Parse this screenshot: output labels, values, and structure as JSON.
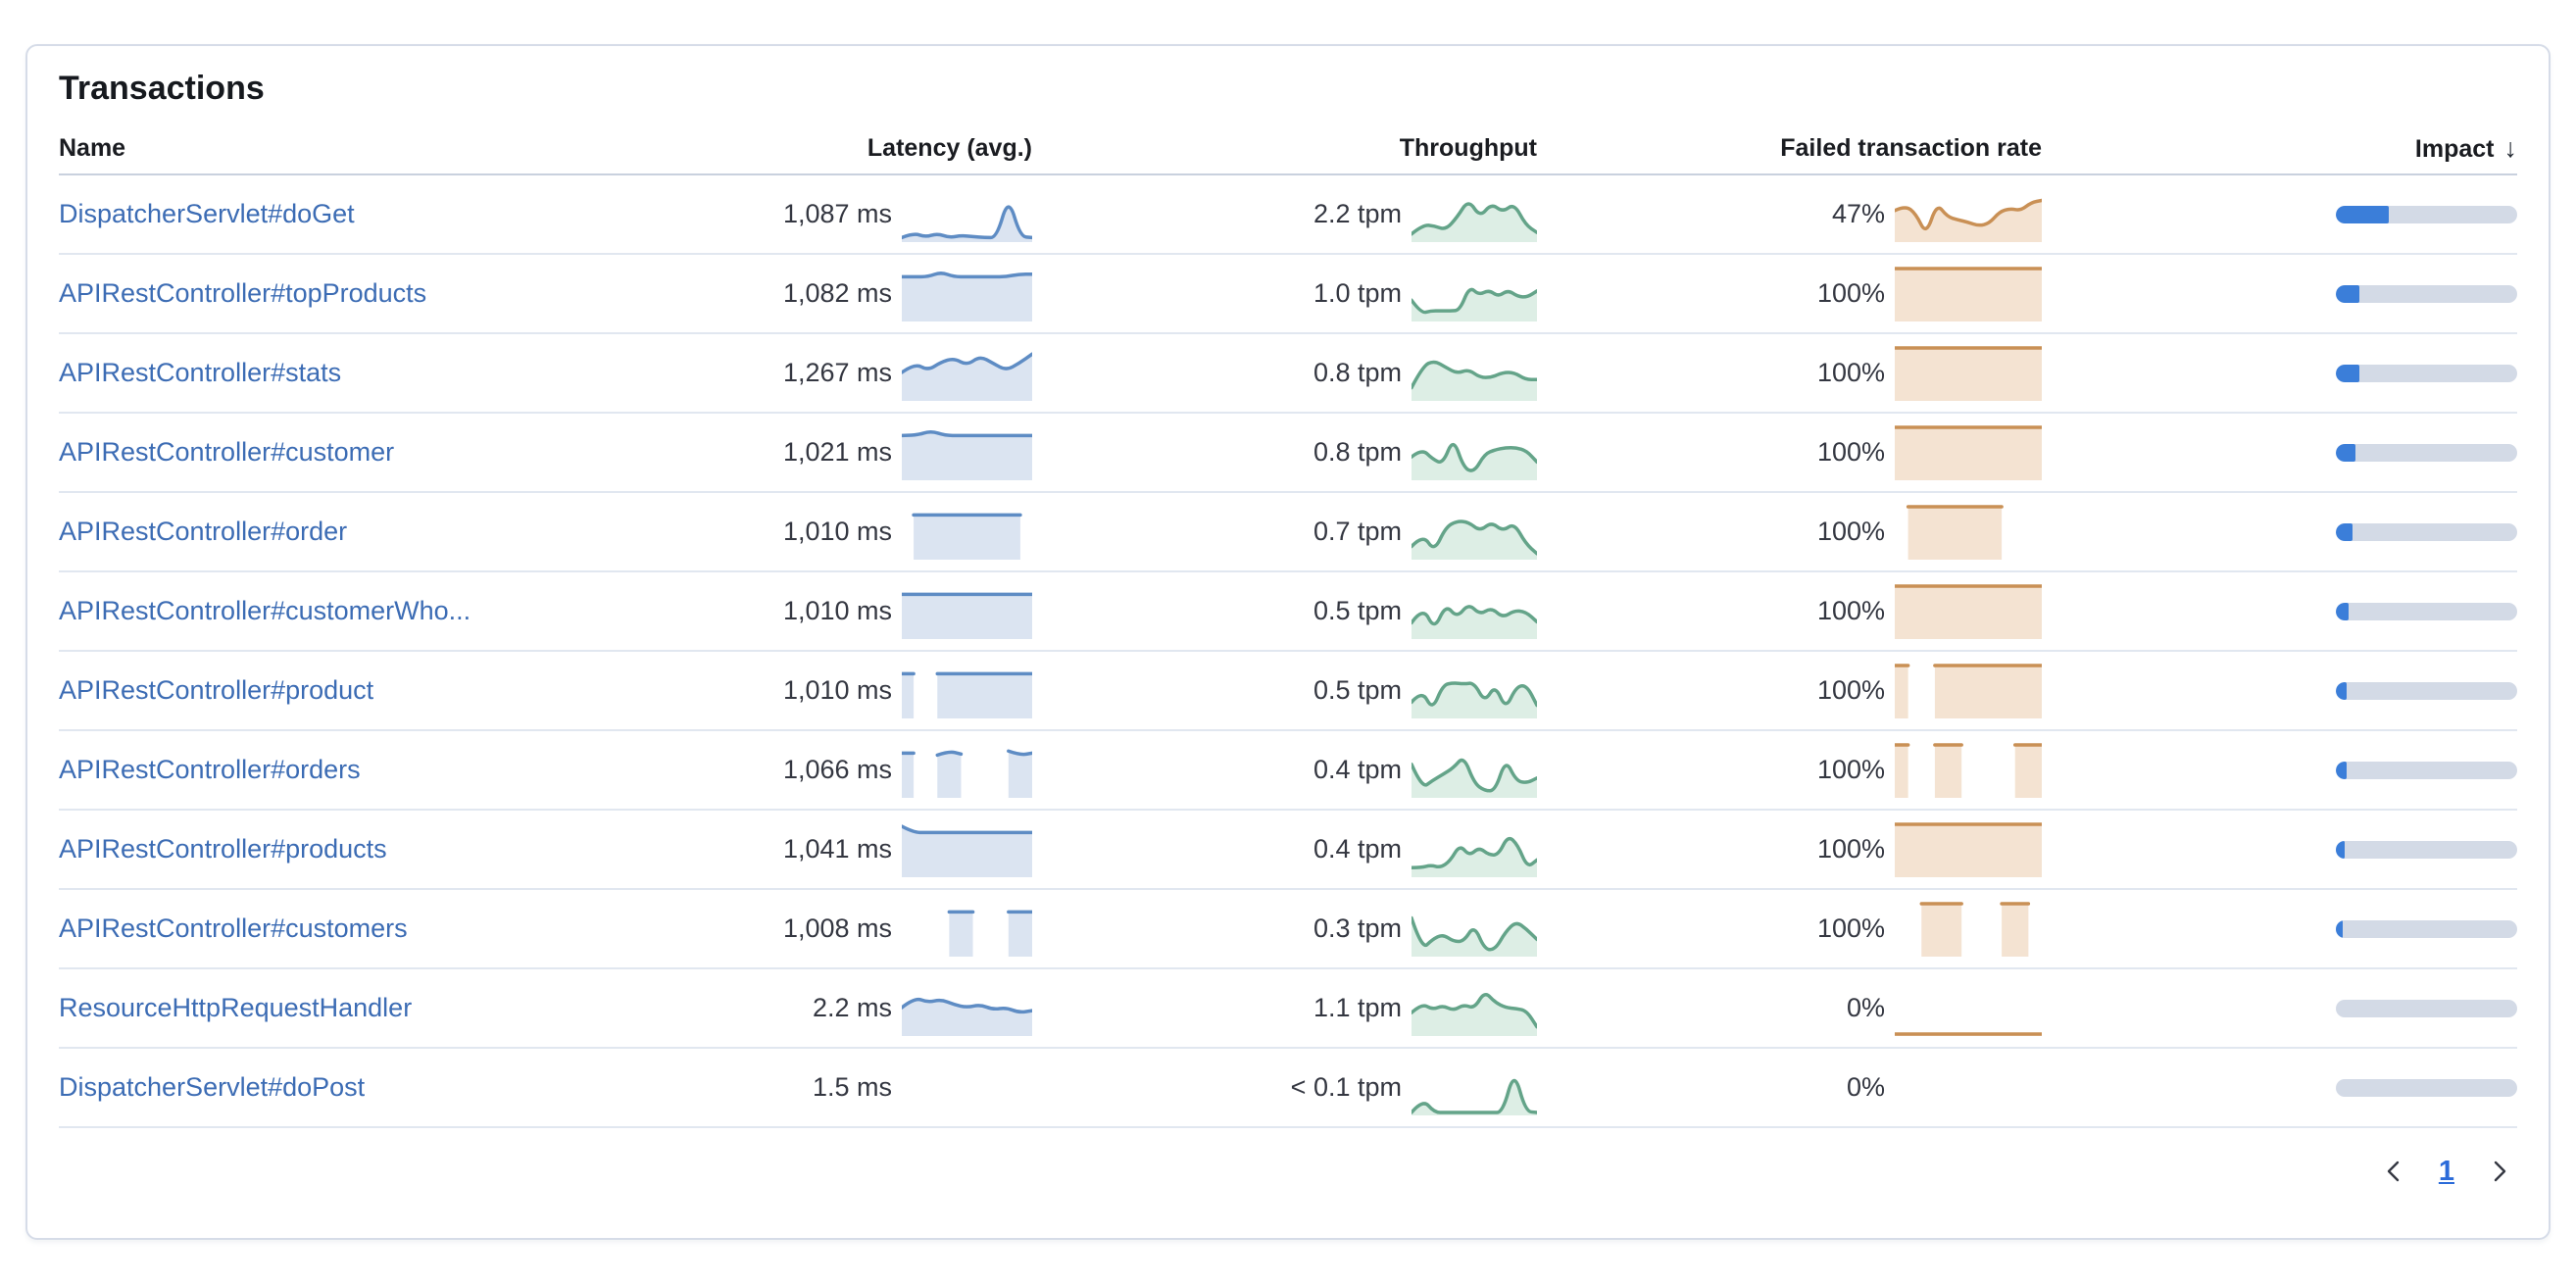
{
  "card": {
    "title": "Transactions"
  },
  "table": {
    "columns": {
      "name": "Name",
      "latency": "Latency (avg.)",
      "throughput": "Throughput",
      "failed_rate": "Failed transaction rate",
      "impact": "Impact"
    },
    "sort": {
      "column": "impact",
      "direction": "desc",
      "glyph": "↓"
    },
    "rows": [
      {
        "name": "DispatcherServlet#doGet",
        "latency": "1,087 ms",
        "throughput": "2.2 tpm",
        "failed_rate": "47%",
        "impact_pct": 29,
        "latency_spark": [
          5,
          14,
          6,
          13,
          5,
          9,
          7,
          5,
          5,
          85,
          7,
          5
        ],
        "throughput_spark": [
          12,
          30,
          28,
          20,
          45,
          80,
          45,
          72,
          55,
          72,
          30,
          15
        ],
        "failed_spark": [
          58,
          68,
          52,
          10,
          72,
          46,
          40,
          35,
          28,
          33,
          56,
          62,
          58,
          74,
          78
        ]
      },
      {
        "name": "APIRestController#topProducts",
        "latency": "1,082 ms",
        "throughput": "1.0 tpm",
        "failed_rate": "100%",
        "impact_pct": 13,
        "latency_spark": [
          84,
          84,
          84,
          93,
          84,
          84,
          84,
          84,
          84,
          89,
          89
        ],
        "throughput_spark": [
          38,
          12,
          17,
          17,
          17,
          18,
          65,
          48,
          58,
          45,
          58,
          45,
          44,
          56
        ],
        "failed_spark": [
          100,
          100,
          100,
          100,
          100,
          100,
          100,
          100,
          100,
          100
        ]
      },
      {
        "name": "APIRestController#stats",
        "latency": "1,267 ms",
        "throughput": "0.8 tpm",
        "failed_rate": "100%",
        "impact_pct": 13,
        "latency_spark": [
          52,
          70,
          56,
          72,
          80,
          66,
          84,
          70,
          56,
          70,
          88
        ],
        "throughput_spark": [
          22,
          65,
          75,
          62,
          50,
          58,
          42,
          42,
          52,
          52,
          38,
          38
        ],
        "failed_spark": [
          100,
          100,
          100,
          100,
          100,
          100,
          100,
          100,
          100,
          100
        ]
      },
      {
        "name": "APIRestController#customer",
        "latency": "1,021 ms",
        "throughput": "0.8 tpm",
        "failed_rate": "100%",
        "impact_pct": 11,
        "latency_spark": [
          84,
          84,
          93,
          84,
          84,
          84,
          84,
          84,
          84,
          84
        ],
        "throughput_spark": [
          42,
          58,
          38,
          28,
          80,
          20,
          12,
          48,
          56,
          60,
          60,
          54,
          32
        ],
        "failed_spark": [
          100,
          100,
          100,
          100,
          100,
          100,
          100,
          100,
          100,
          100
        ]
      },
      {
        "name": "APIRestController#order",
        "latency": "1,010 ms",
        "throughput": "0.7 tpm",
        "failed_rate": "100%",
        "impact_pct": 9,
        "latency_spark": [
          null,
          84,
          84,
          84,
          84,
          84,
          84,
          84,
          84,
          84,
          84,
          null
        ],
        "throughput_spark": [
          22,
          46,
          12,
          60,
          72,
          70,
          52,
          70,
          52,
          68,
          28,
          8
        ],
        "failed_spark": [
          null,
          100,
          100,
          100,
          100,
          100,
          100,
          100,
          100,
          null,
          null,
          null
        ]
      },
      {
        "name": "APIRestController#customerWho...",
        "latency": "1,010 ms",
        "throughput": "0.5 tpm",
        "failed_rate": "100%",
        "impact_pct": 7,
        "latency_spark": [
          84,
          84,
          84,
          84,
          84,
          84,
          84,
          84,
          84,
          84,
          84,
          84
        ],
        "throughput_spark": [
          28,
          60,
          14,
          64,
          38,
          66,
          44,
          58,
          38,
          52,
          50,
          30
        ],
        "failed_spark": [
          100,
          100,
          100,
          100,
          100,
          100,
          100,
          100,
          100,
          100,
          100,
          100
        ]
      },
      {
        "name": "APIRestController#product",
        "latency": "1,010 ms",
        "throughput": "0.5 tpm",
        "failed_rate": "100%",
        "impact_pct": 6,
        "latency_spark": [
          84,
          84,
          null,
          84,
          84,
          84,
          84,
          84,
          84,
          84,
          84,
          84
        ],
        "throughput_spark": [
          28,
          52,
          12,
          62,
          66,
          64,
          66,
          28,
          62,
          14,
          58,
          62,
          22
        ],
        "failed_spark": [
          100,
          100,
          null,
          100,
          100,
          100,
          100,
          100,
          100,
          100,
          100,
          100
        ]
      },
      {
        "name": "APIRestController#orders",
        "latency": "1,066 ms",
        "throughput": "0.4 tpm",
        "failed_rate": "100%",
        "impact_pct": 6,
        "latency_spark": [
          84,
          84,
          null,
          80,
          88,
          82,
          null,
          null,
          null,
          88,
          80,
          84
        ],
        "throughput_spark": [
          62,
          15,
          30,
          42,
          55,
          78,
          25,
          10,
          10,
          72,
          30,
          25,
          35
        ],
        "failed_spark": [
          100,
          100,
          null,
          100,
          100,
          100,
          null,
          null,
          null,
          100,
          100,
          100
        ]
      },
      {
        "name": "APIRestController#products",
        "latency": "1,041 ms",
        "throughput": "0.4 tpm",
        "failed_rate": "100%",
        "impact_pct": 5,
        "latency_spark": [
          96,
          84,
          84,
          84,
          84,
          84,
          84,
          84,
          84,
          84,
          84,
          84
        ],
        "throughput_spark": [
          15,
          15,
          20,
          15,
          28,
          60,
          38,
          55,
          40,
          40,
          78,
          60,
          15,
          30
        ],
        "failed_spark": [
          100,
          100,
          100,
          100,
          100,
          100,
          100,
          100,
          100,
          100,
          100,
          100
        ]
      },
      {
        "name": "APIRestController#customers",
        "latency": "1,008 ms",
        "throughput": "0.3 tpm",
        "failed_rate": "100%",
        "impact_pct": 4,
        "latency_spark": [
          null,
          null,
          null,
          null,
          84,
          84,
          84,
          null,
          null,
          84,
          84,
          84
        ],
        "throughput_spark": [
          72,
          10,
          30,
          40,
          26,
          26,
          58,
          10,
          10,
          45,
          65,
          50,
          30
        ],
        "failed_spark": [
          null,
          null,
          100,
          100,
          100,
          100,
          null,
          null,
          100,
          100,
          100,
          null
        ]
      },
      {
        "name": "ResourceHttpRequestHandler",
        "latency": "2.2 ms",
        "throughput": "1.1 tpm",
        "failed_rate": "0%",
        "impact_pct": 0,
        "latency_spark": [
          52,
          72,
          62,
          68,
          58,
          52,
          58,
          48,
          52,
          42,
          46
        ],
        "throughput_spark": [
          42,
          60,
          48,
          56,
          46,
          58,
          50,
          84,
          62,
          52,
          50,
          46,
          14
        ],
        "failed_spark": [
          0,
          0,
          0,
          0,
          0,
          0,
          0,
          0
        ]
      },
      {
        "name": "DispatcherServlet#doPost",
        "latency": "1.5 ms",
        "throughput": "< 0.1 tpm",
        "failed_rate": "0%",
        "impact_pct": 0,
        "latency_spark": null,
        "throughput_spark": [
          2,
          28,
          2,
          2,
          2,
          2,
          2,
          2,
          2,
          85,
          4,
          2
        ],
        "failed_spark": null
      }
    ]
  },
  "pagination": {
    "page": "1"
  },
  "colors": {
    "latency_stroke": "#5e8cc4",
    "latency_fill": "#dbe4f1",
    "throughput_stroke": "#64a489",
    "throughput_fill": "#ddeee5",
    "failed_stroke": "#c99055",
    "failed_fill": "#f4e3d2",
    "impact_fill": "#3b7ed9",
    "impact_track": "#d3dae6",
    "link": "#3c6cb4"
  }
}
